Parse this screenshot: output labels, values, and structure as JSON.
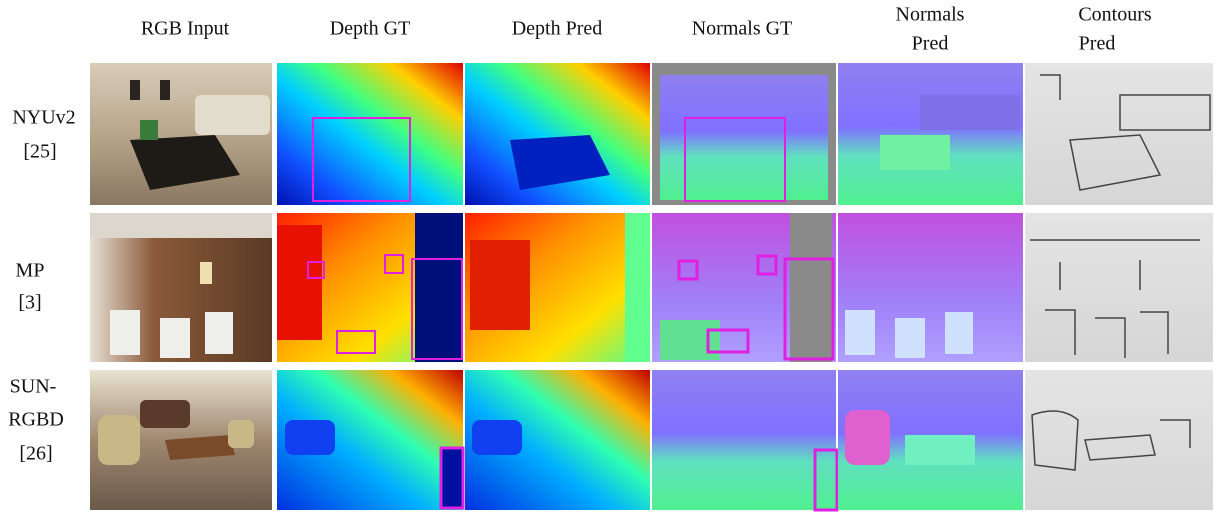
{
  "figure": {
    "columns": [
      {
        "lines": [
          "RGB Input"
        ]
      },
      {
        "lines": [
          "Depth GT"
        ]
      },
      {
        "lines": [
          "Depth Pred"
        ]
      },
      {
        "lines": [
          "Normals GT"
        ]
      },
      {
        "lines": [
          "Normals",
          "Pred"
        ]
      },
      {
        "lines": [
          "Contours",
          "Pred"
        ]
      }
    ],
    "rows": [
      {
        "lines": [
          "NYUv2",
          "[25]"
        ]
      },
      {
        "lines": [
          "MP",
          "[3]"
        ]
      },
      {
        "lines": [
          "SUN-",
          "RGBD",
          "[26]"
        ]
      }
    ]
  }
}
